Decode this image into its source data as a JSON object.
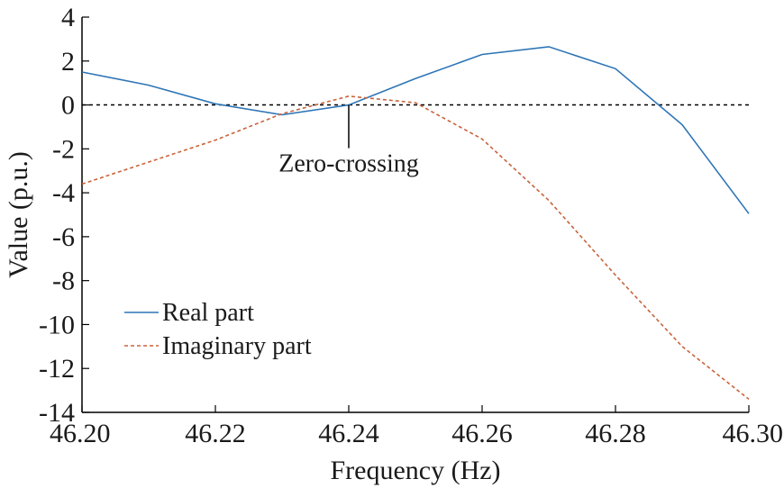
{
  "chart_data": {
    "type": "line",
    "xlabel": "Frequency (Hz)",
    "ylabel": "Value (p.u.)",
    "xlim": [
      46.2,
      46.3
    ],
    "ylim": [
      -14,
      4
    ],
    "xticks": [
      46.2,
      46.22,
      46.24,
      46.26,
      46.28,
      46.3
    ],
    "xtick_labels": [
      "46.20",
      "46.22",
      "46.24",
      "46.26",
      "46.28",
      "46.30"
    ],
    "yticks": [
      4,
      2,
      0,
      -2,
      -4,
      -6,
      -8,
      -10,
      -12,
      -14
    ],
    "ytick_labels": [
      "4",
      "2",
      "0",
      "-2",
      "-4",
      "-6",
      "-8",
      "-10",
      "-12",
      "-14"
    ],
    "grid": false,
    "legend_position": "bottom-left",
    "series": [
      {
        "name": "Real part",
        "color": "#2e75b6",
        "style": "solid",
        "x": [
          46.2,
          46.21,
          46.22,
          46.23,
          46.24,
          46.25,
          46.26,
          46.27,
          46.28,
          46.29,
          46.3
        ],
        "values": [
          1.5,
          0.9,
          0.05,
          -0.45,
          0.0,
          1.2,
          2.3,
          2.65,
          1.65,
          -0.9,
          -4.95
        ]
      },
      {
        "name": "Imaginary part",
        "color": "#c8643c",
        "style": "dashed",
        "x": [
          46.2,
          46.21,
          46.22,
          46.23,
          46.24,
          46.25,
          46.26,
          46.27,
          46.28,
          46.29,
          46.3
        ],
        "values": [
          -3.6,
          -2.6,
          -1.6,
          -0.4,
          0.4,
          0.1,
          -1.55,
          -4.35,
          -7.75,
          -11.0,
          -13.4
        ]
      }
    ],
    "reference_line": {
      "y": 0,
      "style": "dotted",
      "color": "#000000"
    },
    "annotations": [
      {
        "text": "Zero-crossing",
        "x": 46.24,
        "y": 0
      }
    ]
  }
}
